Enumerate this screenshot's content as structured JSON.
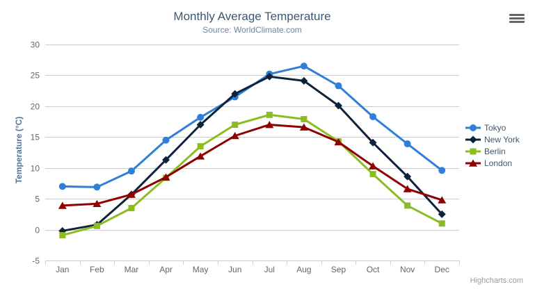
{
  "title": "Monthly Average Temperature",
  "subtitle": "Source: WorldClimate.com",
  "credits": "Highcharts.com",
  "export_menu": {
    "icon": "hamburger-menu-icon"
  },
  "chart_data": {
    "type": "line",
    "title": "Monthly Average Temperature",
    "subtitle": "Source: WorldClimate.com",
    "xlabel": "",
    "ylabel": "Temperature (°C)",
    "ylim": [
      -5,
      30
    ],
    "ytick_interval": 5,
    "grid": true,
    "legend_position": "right",
    "categories": [
      "Jan",
      "Feb",
      "Mar",
      "Apr",
      "May",
      "Jun",
      "Jul",
      "Aug",
      "Sep",
      "Oct",
      "Nov",
      "Dec"
    ],
    "series": [
      {
        "name": "Tokyo",
        "color": "#2f7ed8",
        "marker": "circle",
        "values": [
          7.0,
          6.9,
          9.5,
          14.5,
          18.2,
          21.5,
          25.2,
          26.5,
          23.3,
          18.3,
          13.9,
          9.6
        ]
      },
      {
        "name": "New York",
        "color": "#0d233a",
        "marker": "diamond",
        "values": [
          -0.2,
          0.8,
          5.7,
          11.3,
          17.0,
          22.0,
          24.8,
          24.1,
          20.1,
          14.1,
          8.6,
          2.5
        ]
      },
      {
        "name": "Berlin",
        "color": "#8bbc21",
        "marker": "square",
        "values": [
          -0.9,
          0.6,
          3.5,
          8.4,
          13.5,
          17.0,
          18.6,
          17.9,
          14.3,
          9.0,
          3.9,
          1.0
        ]
      },
      {
        "name": "London",
        "color": "#910000",
        "marker": "triangle",
        "values": [
          3.9,
          4.2,
          5.7,
          8.5,
          11.9,
          15.2,
          17.0,
          16.6,
          14.2,
          10.3,
          6.6,
          4.8
        ]
      }
    ],
    "colors": {
      "grid_line": "#cccccc",
      "axis_line": "#c0d0e0",
      "tick_label": "#666666",
      "title": "#3e576f",
      "subtitle": "#6d869f",
      "axis_title": "#4d759e",
      "legend_text": "#3e576f",
      "credits": "#999999"
    }
  }
}
